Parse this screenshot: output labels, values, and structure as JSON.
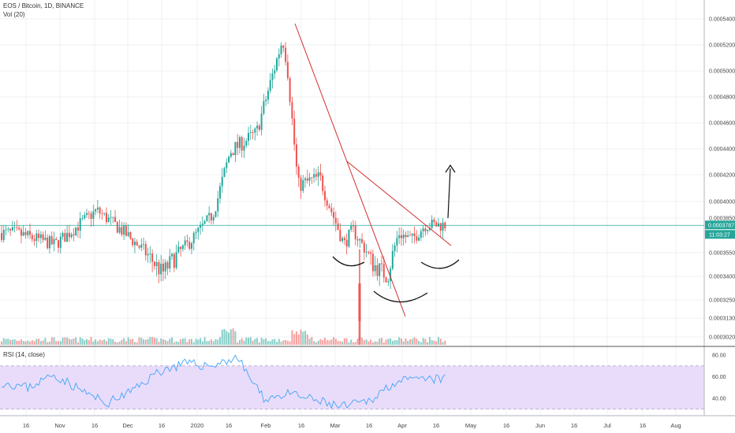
{
  "header": {
    "symbol": "EOS / Bitcoin, 1D, BINANCE",
    "volume_label": "Vol (20)",
    "rsi_label": "RSI (14, close)"
  },
  "colors": {
    "up": "#26a69a",
    "down": "#ef5350",
    "trendline": "#d32f2f",
    "rsi_line": "#42a5f5",
    "rsi_band": "#e9dcfb",
    "last_price_line": "#26a69a",
    "annotation": "#111111"
  },
  "chart_data": [
    {
      "type": "candlestick",
      "pane": "price",
      "y_axis_ticks": [
        "0.0005400",
        "0.0005200",
        "0.0005000",
        "0.0004800",
        "0.0004600",
        "0.0004400",
        "0.0004200",
        "0.0004000",
        "0.0003850",
        "0.0003550",
        "0.0003400",
        "0.0003250",
        "0.0003130",
        "0.0003020"
      ],
      "x_axis_ticks": [
        "16",
        "Nov",
        "16",
        "Dec",
        "16",
        "2020",
        "16",
        "Feb",
        "16",
        "Mar",
        "16",
        "Apr",
        "16",
        "May",
        "16",
        "Jun",
        "16",
        "Jul",
        "16",
        "Aug"
      ],
      "last_price": "0.0003787",
      "countdown": "11:03:27",
      "approx_series": {
        "dates": [
          "2019-10-14",
          "2019-11-01",
          "2019-11-20",
          "2019-12-01",
          "2019-12-20",
          "2020-01-01",
          "2020-01-12",
          "2020-01-20",
          "2020-02-01",
          "2020-02-13",
          "2020-02-15",
          "2020-02-20",
          "2020-03-01",
          "2020-03-12",
          "2020-03-16",
          "2020-03-25",
          "2020-04-01",
          "2020-04-06",
          "2020-04-12",
          "2020-04-18"
        ],
        "close": [
          0.000372,
          0.000362,
          0.000392,
          0.000375,
          0.000342,
          0.000363,
          0.000388,
          0.000438,
          0.000452,
          0.000525,
          0.000505,
          0.000412,
          0.000418,
          0.000362,
          0.000375,
          0.000348,
          0.00034,
          0.000372,
          0.000366,
          0.000379
        ]
      }
    },
    {
      "type": "bar",
      "pane": "volume"
    },
    {
      "type": "line",
      "pane": "rsi",
      "y_axis_ticks": [
        "80.00",
        "60.00",
        "40.00"
      ],
      "band": [
        30,
        70
      ],
      "approx_values": [
        55,
        50,
        62,
        48,
        35,
        47,
        65,
        72,
        70,
        78,
        40,
        44,
        38,
        32,
        37,
        55,
        57,
        58
      ]
    }
  ]
}
